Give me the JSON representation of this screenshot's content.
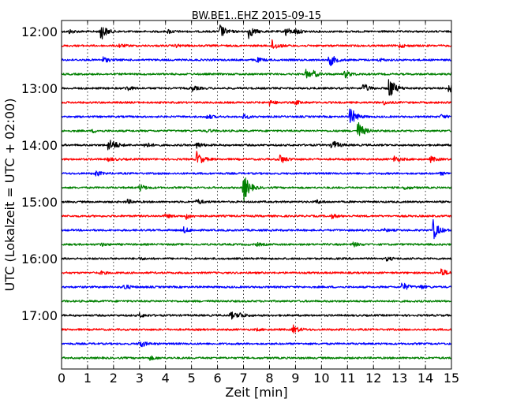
{
  "chart_data": {
    "type": "line",
    "title": "BW.BE1..EHZ 2015-09-15",
    "xlabel": "Zeit  [min]",
    "ylabel": "UTC (Lokalzeit = UTC + 02:00)",
    "xlim": [
      0,
      15
    ],
    "x_ticks": [
      "0",
      "1",
      "2",
      "3",
      "4",
      "5",
      "6",
      "7",
      "8",
      "9",
      "10",
      "11",
      "12",
      "13",
      "14",
      "15"
    ],
    "y_tick_labels": [
      "12:00",
      "13:00",
      "14:00",
      "15:00",
      "16:00",
      "17:00"
    ],
    "trace_interval_minutes": 15,
    "grid": "vertical dotted",
    "trace_colors": [
      "#000000",
      "#ff0000",
      "#0000ff",
      "#008000"
    ],
    "series": [
      {
        "start": "12:00",
        "events": [
          [
            1.5,
            1.0
          ],
          [
            6.1,
            0.75
          ],
          [
            7.2,
            0.7
          ],
          [
            8.6,
            0.5
          ],
          [
            0.3,
            0.2
          ],
          [
            4.1,
            0.2
          ],
          [
            9.0,
            0.25
          ]
        ]
      },
      {
        "start": "12:15",
        "events": [
          [
            8.1,
            0.55
          ],
          [
            2.2,
            0.2
          ],
          [
            4.4,
            0.15
          ],
          [
            13.0,
            0.2
          ]
        ]
      },
      {
        "start": "12:30",
        "events": [
          [
            10.3,
            0.75
          ],
          [
            1.6,
            0.3
          ],
          [
            7.5,
            0.25
          ],
          [
            12.2,
            0.15
          ]
        ]
      },
      {
        "start": "12:45",
        "events": [
          [
            9.4,
            0.45
          ],
          [
            10.9,
            0.4
          ],
          [
            9.7,
            0.25
          ],
          [
            15.0,
            0.3
          ]
        ]
      },
      {
        "start": "13:00",
        "events": [
          [
            12.6,
            1.35
          ],
          [
            11.6,
            0.5
          ],
          [
            14.9,
            0.45
          ],
          [
            5.0,
            0.3
          ],
          [
            2.5,
            0.25
          ]
        ]
      },
      {
        "start": "13:15",
        "events": [
          [
            8.0,
            0.25
          ],
          [
            9.0,
            0.2
          ],
          [
            12.4,
            0.2
          ]
        ]
      },
      {
        "start": "13:30",
        "events": [
          [
            11.1,
            1.1
          ],
          [
            5.6,
            0.25
          ],
          [
            7.0,
            0.25
          ],
          [
            14.6,
            0.2
          ]
        ]
      },
      {
        "start": "13:45",
        "events": [
          [
            11.4,
            1.05
          ],
          [
            1.2,
            0.15
          ],
          [
            5.6,
            0.15
          ]
        ]
      },
      {
        "start": "14:00",
        "events": [
          [
            1.8,
            0.7
          ],
          [
            10.4,
            0.6
          ],
          [
            3.2,
            0.3
          ],
          [
            5.2,
            0.3
          ],
          [
            2.0,
            0.2
          ]
        ]
      },
      {
        "start": "14:15",
        "events": [
          [
            5.2,
            0.8
          ],
          [
            8.4,
            0.5
          ],
          [
            12.8,
            0.35
          ],
          [
            14.2,
            0.3
          ],
          [
            1.8,
            0.2
          ]
        ]
      },
      {
        "start": "14:30",
        "events": [
          [
            1.3,
            0.3
          ],
          [
            14.6,
            0.15
          ]
        ]
      },
      {
        "start": "14:45",
        "events": [
          [
            7.0,
            1.6
          ],
          [
            3.0,
            0.35
          ],
          [
            13.2,
            0.2
          ]
        ]
      },
      {
        "start": "15:00",
        "events": [
          [
            5.2,
            0.3
          ],
          [
            2.5,
            0.25
          ],
          [
            9.8,
            0.2
          ]
        ]
      },
      {
        "start": "15:15",
        "events": [
          [
            4.8,
            0.3
          ],
          [
            4.0,
            0.2
          ],
          [
            10.4,
            0.2
          ]
        ]
      },
      {
        "start": "15:30",
        "events": [
          [
            14.3,
            1.1
          ],
          [
            4.7,
            0.3
          ],
          [
            12.4,
            0.15
          ]
        ]
      },
      {
        "start": "15:45",
        "events": [
          [
            11.2,
            0.25
          ],
          [
            1.5,
            0.15
          ],
          [
            7.5,
            0.15
          ]
        ]
      },
      {
        "start": "16:00",
        "events": [
          [
            12.5,
            0.2
          ],
          [
            3.0,
            0.1
          ]
        ]
      },
      {
        "start": "16:15",
        "events": [
          [
            14.6,
            0.45
          ],
          [
            1.5,
            0.15
          ]
        ]
      },
      {
        "start": "16:30",
        "events": [
          [
            13.1,
            0.5
          ],
          [
            2.4,
            0.3
          ],
          [
            13.8,
            0.2
          ]
        ]
      },
      {
        "start": "16:45",
        "events": []
      },
      {
        "start": "17:00",
        "events": [
          [
            6.5,
            0.4
          ],
          [
            6.8,
            0.3
          ],
          [
            3.0,
            0.2
          ]
        ]
      },
      {
        "start": "17:15",
        "events": [
          [
            8.9,
            0.45
          ],
          [
            7.5,
            0.1
          ]
        ]
      },
      {
        "start": "17:30",
        "events": [
          [
            3.0,
            0.45
          ]
        ]
      },
      {
        "start": "17:45",
        "events": [
          [
            3.4,
            0.2
          ]
        ]
      }
    ]
  }
}
